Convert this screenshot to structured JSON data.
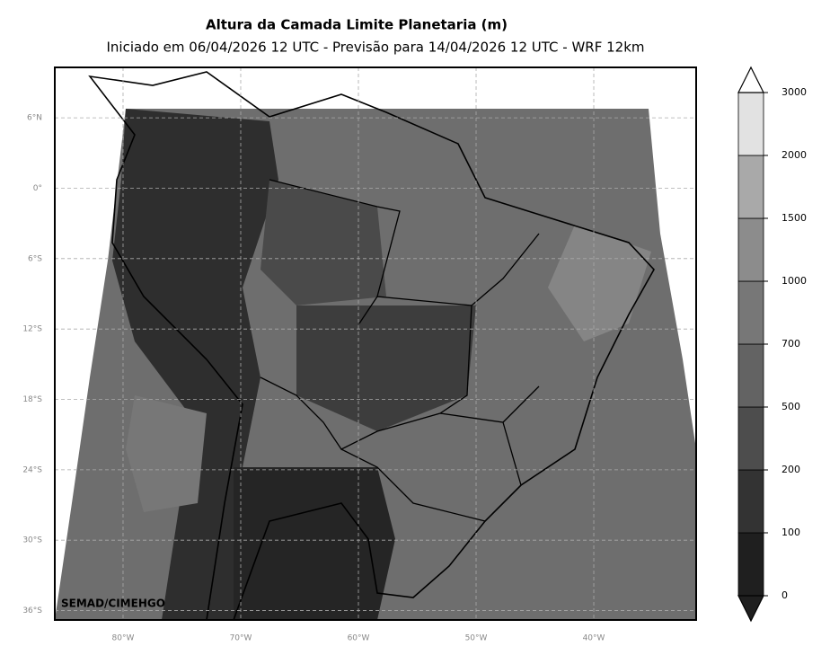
{
  "header": {
    "title": "Altura da Camada Limite Planetaria (m)",
    "subtitle": "Iniciado em 06/04/2026 12 UTC - Previsão para 14/04/2026 12 UTC - WRF 12km"
  },
  "map": {
    "xlim": [
      -85.8,
      -31.3
    ],
    "ylim": [
      -36.8,
      10.3
    ],
    "xticks": [
      {
        "value": -80,
        "label": "80°W"
      },
      {
        "value": -70,
        "label": "70°W"
      },
      {
        "value": -60,
        "label": "60°W"
      },
      {
        "value": -50,
        "label": "50°W"
      },
      {
        "value": -40,
        "label": "40°W"
      }
    ],
    "yticks": [
      {
        "value": 6,
        "label": "6°N"
      },
      {
        "value": 0,
        "label": "0°"
      },
      {
        "value": -6,
        "label": "6°S"
      },
      {
        "value": -12,
        "label": "12°S"
      },
      {
        "value": -18,
        "label": "18°S"
      },
      {
        "value": -24,
        "label": "24°S"
      },
      {
        "value": -30,
        "label": "30°S"
      },
      {
        "value": -36,
        "label": "36°S"
      }
    ],
    "grid": true,
    "credit": "SEMAD/CIMEHGO"
  },
  "colorbar": {
    "levels": [
      0,
      100,
      200,
      500,
      700,
      1000,
      1500,
      2000,
      3000
    ],
    "colors": [
      "#1f1f1f",
      "#333333",
      "#4d4d4d",
      "#636363",
      "#777777",
      "#8c8c8c",
      "#a9a9a9",
      "#e2e2e2"
    ]
  }
}
